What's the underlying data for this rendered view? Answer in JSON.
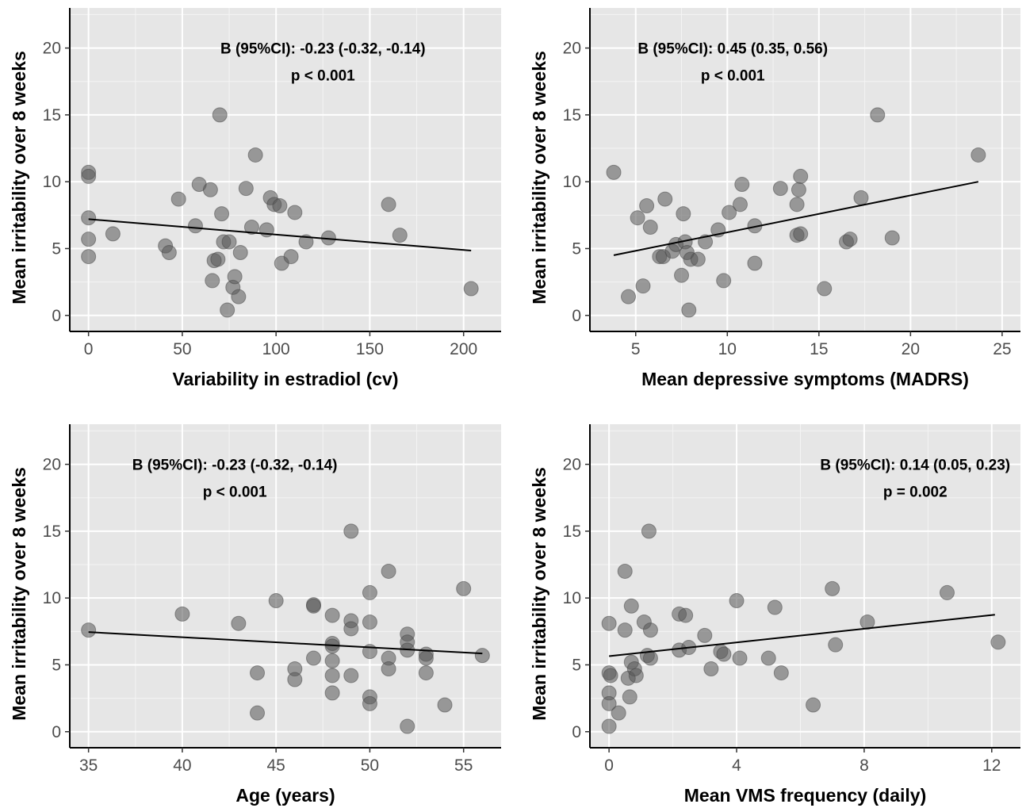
{
  "chart_data": [
    {
      "type": "scatter",
      "xlabel": "Variability in estradiol (cv)",
      "ylabel": "Mean irritability over 8 weeks",
      "xlim": [
        -10,
        220
      ],
      "ylim": [
        -1.2,
        23
      ],
      "xticks": [
        0,
        50,
        100,
        150,
        200
      ],
      "yticks": [
        0,
        5,
        10,
        15,
        20
      ],
      "annotation": [
        "B (95%CI): -0.23 (-0.32, -0.14)",
        "p < 0.001"
      ],
      "annotation_x": 125,
      "annotation_y": [
        20,
        18
      ],
      "trend": {
        "x": [
          0,
          204
        ],
        "y": [
          7.2,
          4.85
        ]
      },
      "points": [
        [
          0,
          10.7
        ],
        [
          0,
          10.4
        ],
        [
          0,
          7.3
        ],
        [
          0,
          5.7
        ],
        [
          0,
          4.4
        ],
        [
          13,
          6.1
        ],
        [
          41,
          5.2
        ],
        [
          43,
          4.7
        ],
        [
          48,
          8.7
        ],
        [
          57,
          6.7
        ],
        [
          59,
          9.8
        ],
        [
          65,
          9.4
        ],
        [
          66,
          2.6
        ],
        [
          67,
          4.1
        ],
        [
          69,
          4.2
        ],
        [
          70,
          15.0
        ],
        [
          71,
          7.6
        ],
        [
          72,
          5.5
        ],
        [
          74,
          0.4
        ],
        [
          75,
          5.5
        ],
        [
          77,
          2.1
        ],
        [
          78,
          2.9
        ],
        [
          80,
          1.4
        ],
        [
          81,
          4.7
        ],
        [
          84,
          9.5
        ],
        [
          87,
          6.6
        ],
        [
          89,
          12.0
        ],
        [
          95,
          6.4
        ],
        [
          97,
          8.8
        ],
        [
          99,
          8.3
        ],
        [
          102,
          8.2
        ],
        [
          103,
          3.9
        ],
        [
          108,
          4.4
        ],
        [
          110,
          7.7
        ],
        [
          116,
          5.5
        ],
        [
          128,
          5.8
        ],
        [
          160,
          8.3
        ],
        [
          166,
          6.0
        ],
        [
          204,
          2.0
        ]
      ]
    },
    {
      "type": "scatter",
      "xlabel": "Mean depressive symptoms (MADRS)",
      "ylabel": "Mean irritability over 8 weeks",
      "xlim": [
        2.5,
        26.0
      ],
      "ylim": [
        -1.2,
        23
      ],
      "xticks": [
        5,
        10,
        15,
        20,
        25
      ],
      "yticks": [
        0,
        5,
        10,
        15,
        20
      ],
      "annotation": [
        "B (95%CI): 0.45 (0.35, 0.56)",
        "p < 0.001"
      ],
      "annotation_x": 10.3,
      "annotation_y": [
        20,
        18
      ],
      "trend": {
        "x": [
          3.8,
          23.7
        ],
        "y": [
          4.5,
          10.0
        ]
      },
      "points": [
        [
          3.8,
          10.7
        ],
        [
          4.6,
          1.4
        ],
        [
          5.1,
          7.3
        ],
        [
          5.4,
          2.2
        ],
        [
          5.6,
          8.2
        ],
        [
          5.8,
          6.6
        ],
        [
          6.3,
          4.4
        ],
        [
          6.5,
          4.4
        ],
        [
          6.6,
          8.7
        ],
        [
          7.0,
          4.8
        ],
        [
          7.2,
          5.3
        ],
        [
          7.5,
          3.0
        ],
        [
          7.6,
          7.6
        ],
        [
          7.7,
          5.5
        ],
        [
          7.8,
          4.7
        ],
        [
          7.9,
          0.4
        ],
        [
          8.0,
          4.2
        ],
        [
          8.4,
          4.2
        ],
        [
          8.8,
          5.5
        ],
        [
          9.5,
          6.4
        ],
        [
          9.8,
          2.6
        ],
        [
          10.1,
          7.7
        ],
        [
          10.7,
          8.3
        ],
        [
          10.8,
          9.8
        ],
        [
          11.5,
          6.7
        ],
        [
          11.5,
          3.9
        ],
        [
          12.9,
          9.5
        ],
        [
          13.8,
          8.3
        ],
        [
          13.8,
          6.0
        ],
        [
          13.9,
          9.4
        ],
        [
          14.0,
          10.4
        ],
        [
          14.0,
          6.1
        ],
        [
          15.3,
          2.0
        ],
        [
          16.5,
          5.5
        ],
        [
          16.7,
          5.7
        ],
        [
          17.3,
          8.8
        ],
        [
          18.2,
          15.0
        ],
        [
          19.0,
          5.8
        ],
        [
          23.7,
          12.0
        ]
      ]
    },
    {
      "type": "scatter",
      "xlabel": "Age (years)",
      "ylabel": "Mean irritability over 8 weeks",
      "xlim": [
        34,
        57
      ],
      "ylim": [
        -1.2,
        23
      ],
      "xticks": [
        35,
        40,
        45,
        50,
        55
      ],
      "yticks": [
        0,
        5,
        10,
        15,
        20
      ],
      "annotation": [
        "B (95%CI): -0.23 (-0.32, -0.14)",
        "p < 0.001"
      ],
      "annotation_x": 42.8,
      "annotation_y": [
        20,
        18
      ],
      "trend": {
        "x": [
          35,
          56
        ],
        "y": [
          7.45,
          5.85
        ]
      },
      "points": [
        [
          35,
          7.6
        ],
        [
          40,
          8.8
        ],
        [
          43,
          8.1
        ],
        [
          44,
          4.4
        ],
        [
          44,
          1.4
        ],
        [
          45,
          9.8
        ],
        [
          46,
          4.7
        ],
        [
          46,
          3.9
        ],
        [
          47,
          9.5
        ],
        [
          47,
          9.4
        ],
        [
          47,
          5.5
        ],
        [
          48,
          8.7
        ],
        [
          48,
          6.6
        ],
        [
          48,
          6.4
        ],
        [
          48,
          5.3
        ],
        [
          48,
          4.2
        ],
        [
          48,
          2.9
        ],
        [
          49,
          15.0
        ],
        [
          49,
          8.3
        ],
        [
          49,
          7.7
        ],
        [
          49,
          4.2
        ],
        [
          50,
          10.4
        ],
        [
          50,
          8.2
        ],
        [
          50,
          6.0
        ],
        [
          50,
          2.6
        ],
        [
          50,
          2.1
        ],
        [
          51,
          12.0
        ],
        [
          51,
          5.5
        ],
        [
          51,
          4.7
        ],
        [
          52,
          7.3
        ],
        [
          52,
          6.7
        ],
        [
          52,
          6.1
        ],
        [
          52,
          0.4
        ],
        [
          53,
          5.8
        ],
        [
          53,
          5.5
        ],
        [
          53,
          4.4
        ],
        [
          54,
          2.0
        ],
        [
          55,
          10.7
        ],
        [
          56,
          5.7
        ]
      ]
    },
    {
      "type": "scatter",
      "xlabel": "Mean VMS frequency (daily)",
      "ylabel": "Mean irritability over 8 weeks",
      "xlim": [
        -0.6,
        12.9
      ],
      "ylim": [
        -1.2,
        23
      ],
      "xticks": [
        0,
        4,
        8,
        12
      ],
      "yticks": [
        0,
        5,
        10,
        15,
        20
      ],
      "annotation": [
        "B (95%CI): 0.14 (0.05, 0.23)",
        "p = 0.002"
      ],
      "annotation_x": 9.6,
      "annotation_y": [
        20,
        18
      ],
      "trend": {
        "x": [
          0,
          12.1
        ],
        "y": [
          5.65,
          8.75
        ]
      },
      "points": [
        [
          0.0,
          8.1
        ],
        [
          0.0,
          4.4
        ],
        [
          0.05,
          4.2
        ],
        [
          0.0,
          2.9
        ],
        [
          0.0,
          2.1
        ],
        [
          0.0,
          0.4
        ],
        [
          0.3,
          1.4
        ],
        [
          0.5,
          12.0
        ],
        [
          0.5,
          7.6
        ],
        [
          0.6,
          4.0
        ],
        [
          0.65,
          2.6
        ],
        [
          0.7,
          9.4
        ],
        [
          0.7,
          5.2
        ],
        [
          0.8,
          4.7
        ],
        [
          0.85,
          4.2
        ],
        [
          1.1,
          8.2
        ],
        [
          1.2,
          5.7
        ],
        [
          1.25,
          15.0
        ],
        [
          1.3,
          7.6
        ],
        [
          1.3,
          5.5
        ],
        [
          2.2,
          8.8
        ],
        [
          2.2,
          6.1
        ],
        [
          2.4,
          8.7
        ],
        [
          2.5,
          6.3
        ],
        [
          3.0,
          7.2
        ],
        [
          3.2,
          4.7
        ],
        [
          3.5,
          6.0
        ],
        [
          3.6,
          5.8
        ],
        [
          4.0,
          9.8
        ],
        [
          4.1,
          5.5
        ],
        [
          5.0,
          5.5
        ],
        [
          5.2,
          9.3
        ],
        [
          5.4,
          4.4
        ],
        [
          6.4,
          2.0
        ],
        [
          7.0,
          10.7
        ],
        [
          7.1,
          6.5
        ],
        [
          8.1,
          8.2
        ],
        [
          10.6,
          10.4
        ],
        [
          12.2,
          6.7
        ]
      ]
    }
  ]
}
